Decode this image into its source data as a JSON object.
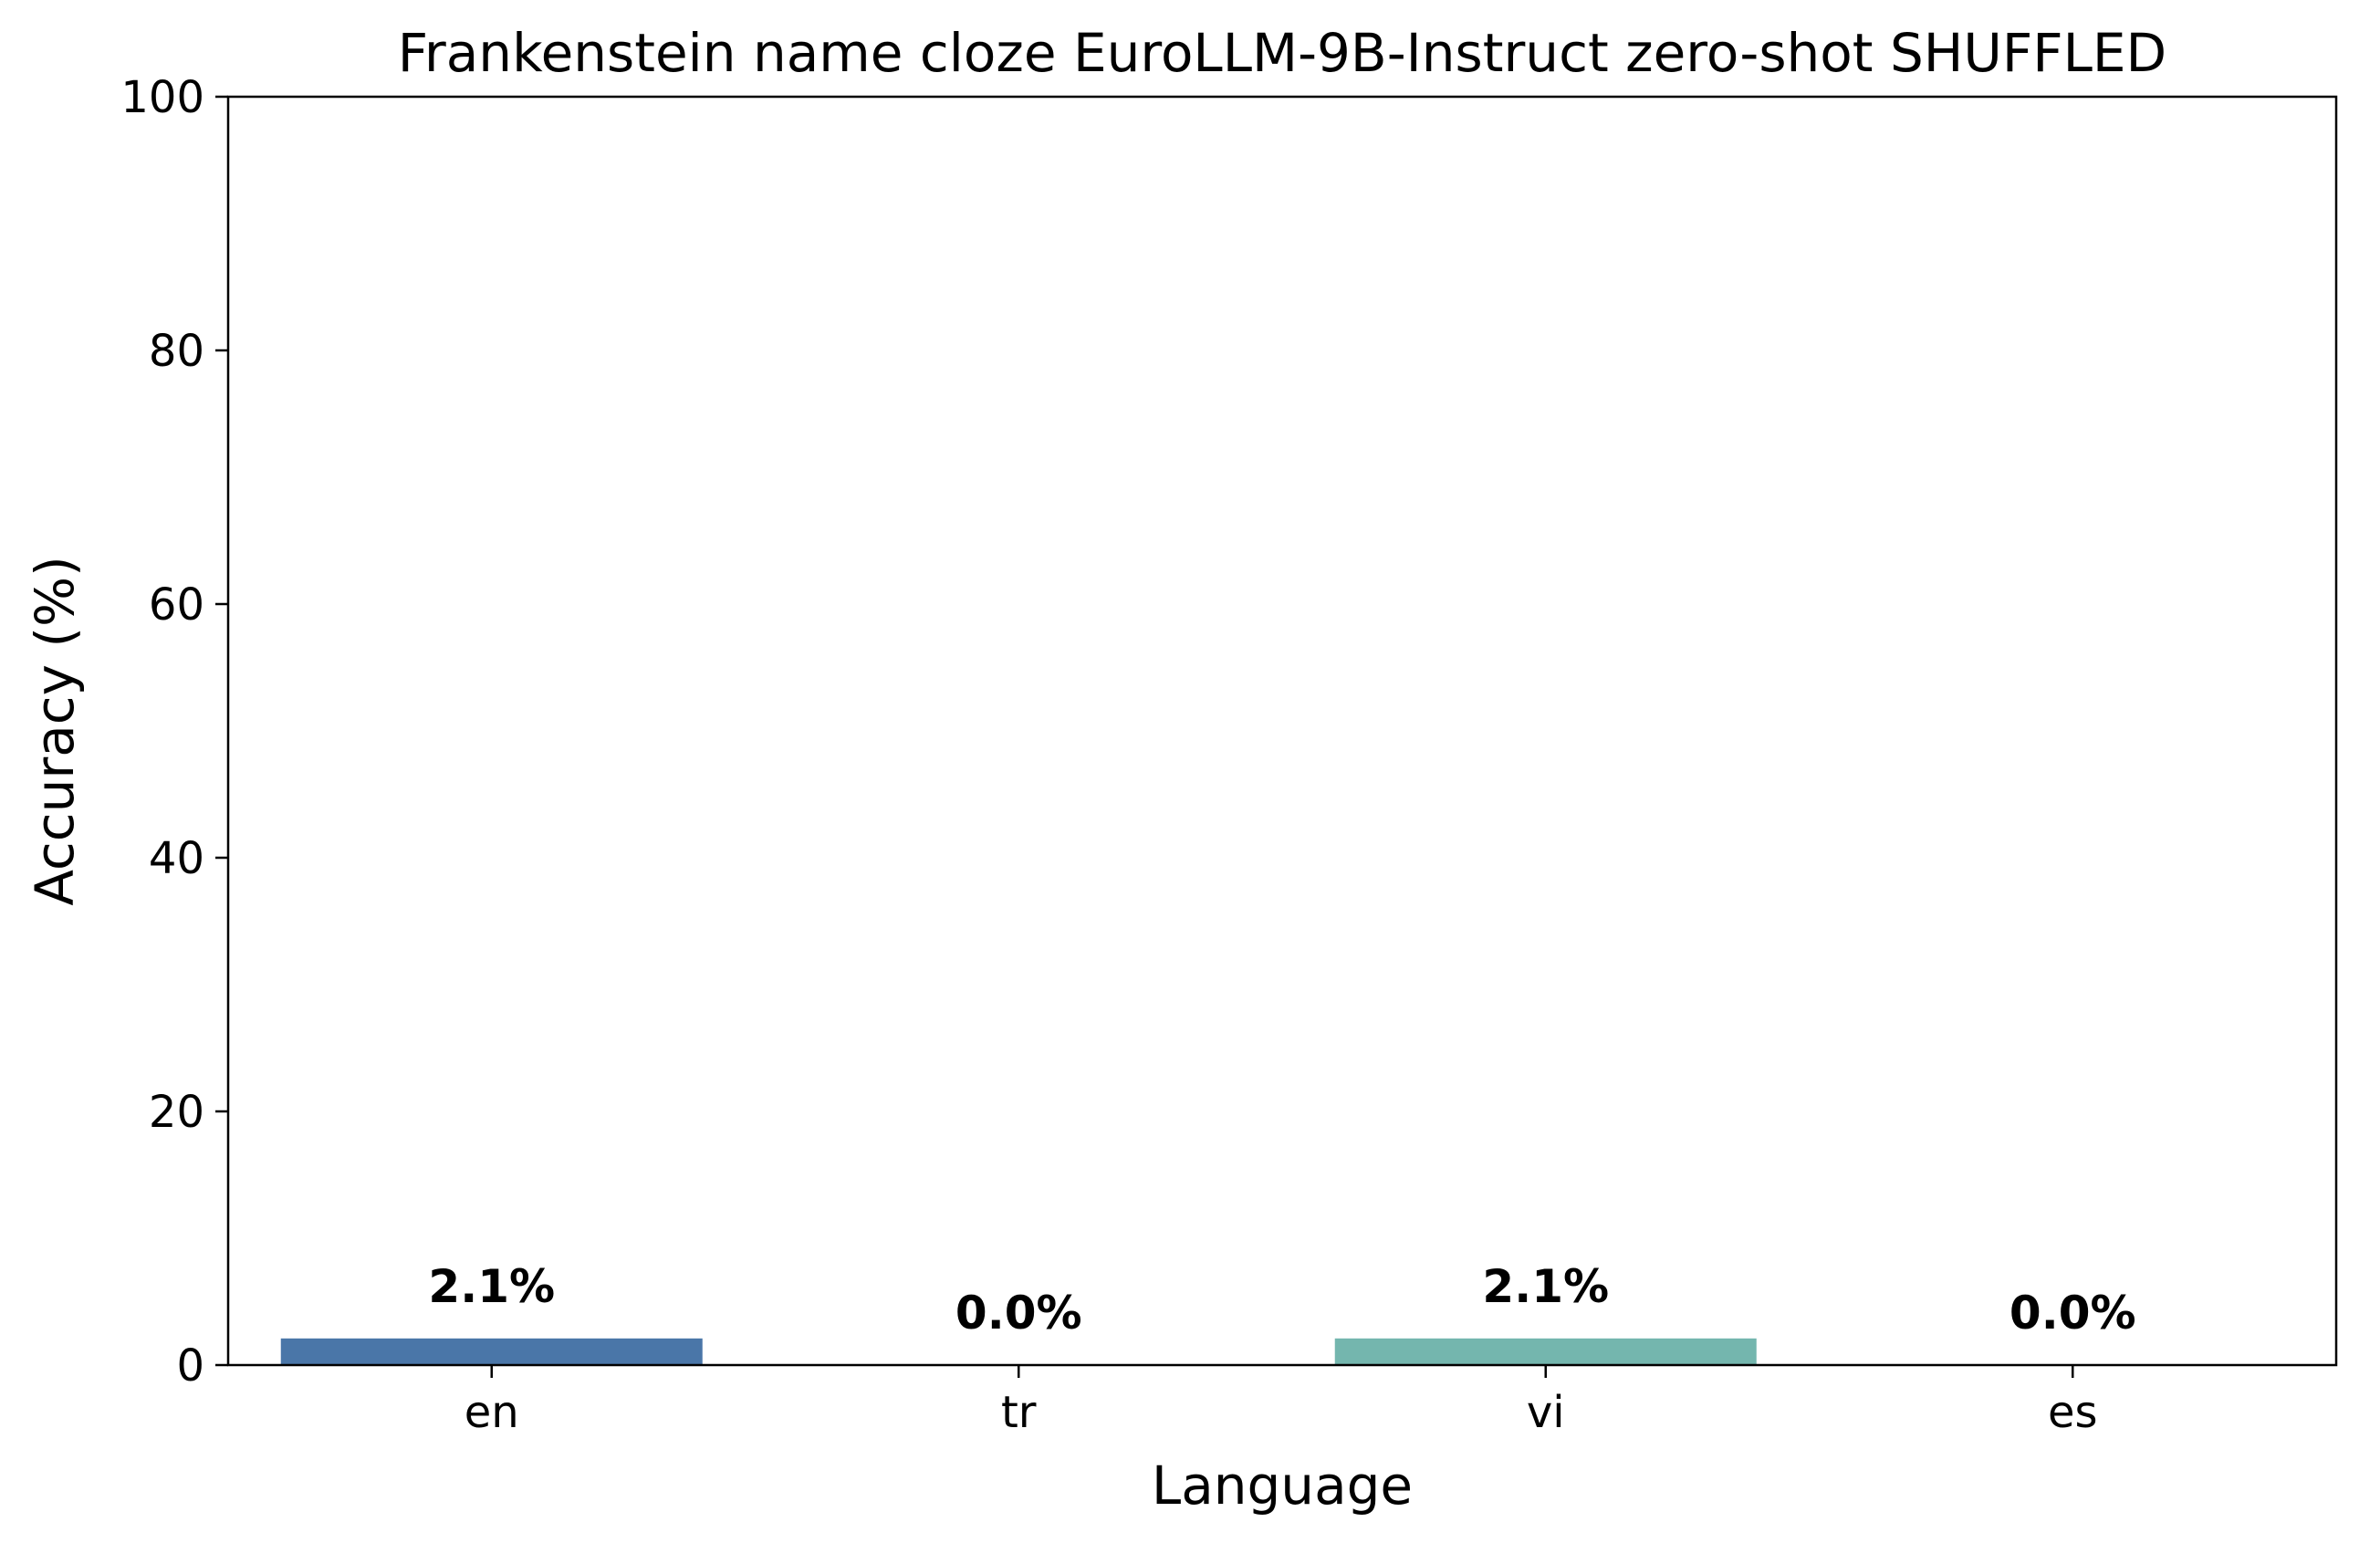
{
  "chart_data": {
    "type": "bar",
    "title": "Frankenstein name cloze EuroLLM-9B-Instruct zero-shot SHUFFLED",
    "xlabel": "Language",
    "ylabel": "Accuracy (%)",
    "categories": [
      "en",
      "tr",
      "vi",
      "es"
    ],
    "values": [
      2.1,
      0.0,
      2.1,
      0.0
    ],
    "data_labels": [
      "2.1%",
      "0.0%",
      "2.1%",
      "0.0%"
    ],
    "ylim": [
      0,
      100
    ],
    "yticks": [
      0,
      20,
      40,
      60,
      80,
      100
    ],
    "colors": [
      "#4a76a8",
      "#5c9fa8",
      "#74b6ae",
      "#88c9a6"
    ],
    "grid": false,
    "legend": "none"
  }
}
